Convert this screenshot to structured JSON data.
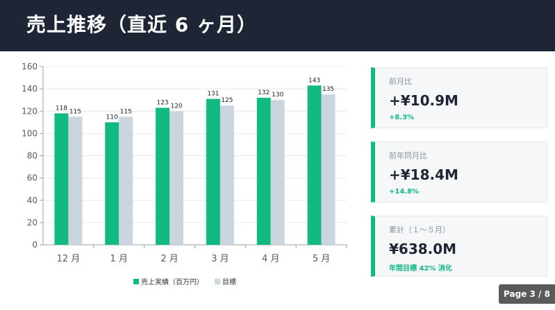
{
  "header": {
    "title": "売上推移（直近 6 ヶ月）"
  },
  "chart_data": {
    "type": "bar",
    "categories": [
      "12 月",
      "1 月",
      "2 月",
      "3 月",
      "4 月",
      "5 月"
    ],
    "series": [
      {
        "name": "売上実績（百万円）",
        "values": [
          118,
          110,
          123,
          131,
          132,
          143
        ],
        "color": "#12b981"
      },
      {
        "name": "目標",
        "values": [
          115,
          115,
          120,
          125,
          130,
          135
        ],
        "color": "#cbd5e0"
      }
    ],
    "ylim": [
      0,
      160
    ],
    "yticks": [
      0,
      20,
      40,
      60,
      80,
      100,
      120,
      140,
      160
    ],
    "grid": true,
    "legend_position": "bottom"
  },
  "cards": [
    {
      "label": "前月比",
      "value": "+¥10.9M",
      "sub": "+8.3%"
    },
    {
      "label": "前年同月比",
      "value": "+¥18.4M",
      "sub": "+14.8%"
    },
    {
      "label": "累計（１～５月）",
      "value": "¥638.0M",
      "sub": "年間目標  42% 消化"
    }
  ],
  "footer": {
    "page": "Page 3 / 8"
  },
  "colors": {
    "header_bg": "#1e2635",
    "accent": "#12b981",
    "target": "#cbd5e0"
  }
}
